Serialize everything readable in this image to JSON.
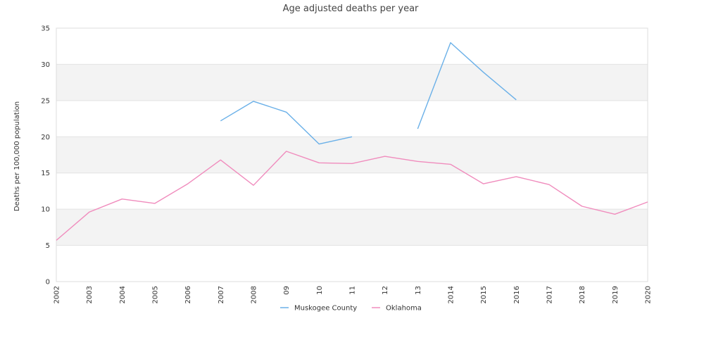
{
  "chart_data": {
    "type": "line",
    "title": "Age adjusted deaths per year",
    "xlabel": "",
    "ylabel": "Deaths per 100,000 population",
    "ylim": [
      0,
      35
    ],
    "yticks": [
      0,
      5,
      10,
      15,
      20,
      25,
      30,
      35
    ],
    "categories": [
      "2002",
      "2003",
      "2004",
      "2005",
      "2006",
      "2007",
      "2008",
      "09",
      "10",
      "11",
      "12",
      "13",
      "2014",
      "2015",
      "2016",
      "2017",
      "2018",
      "2019",
      "2020"
    ],
    "grid": true,
    "legend": "bottom",
    "series": [
      {
        "name": "Muskogee County",
        "color": "#6ab0e8",
        "values": [
          null,
          null,
          null,
          null,
          null,
          22.2,
          24.9,
          23.4,
          19.0,
          20.0,
          null,
          21.1,
          33.0,
          28.9,
          25.1,
          null,
          null,
          null,
          null
        ]
      },
      {
        "name": "Oklahoma",
        "color": "#f08cbd",
        "values": [
          5.7,
          9.6,
          11.4,
          10.8,
          13.5,
          16.8,
          13.3,
          18.0,
          16.4,
          16.3,
          17.3,
          16.6,
          16.2,
          13.5,
          14.5,
          13.4,
          10.4,
          9.3,
          11.0
        ]
      }
    ]
  }
}
